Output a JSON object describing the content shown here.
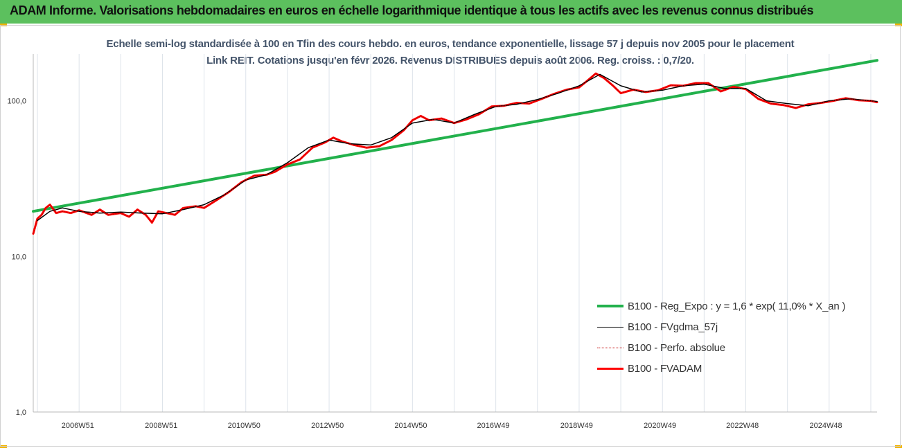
{
  "header": {
    "title": "ADAM Informe. Valorisations hebdomadaires en euros en échelle logarithmique identique à tous les actifs avec les revenus connus distribués"
  },
  "chart_data": {
    "type": "line",
    "title": "Echelle semi-log standardisée à 100 en Tfin des cours hebdo. en euros, tendance exponentielle, lissage 57 j depuis nov 2005 pour le placement Link REIT. Cotations jusqu'en févr 2026. Revenus DISTRIBUES depuis août 2006. Reg. croiss. : 0,7/20.",
    "xlabel": "",
    "ylabel": "",
    "y_scale": "log",
    "ylim": [
      1,
      200
    ],
    "xlim": [
      2005.9,
      2026.15
    ],
    "y_ticks": [
      {
        "value": 1,
        "label": "1,0"
      },
      {
        "value": 10,
        "label": "10,0"
      },
      {
        "value": 100,
        "label": "100,0"
      }
    ],
    "x_ticks": [
      {
        "value": 2006.97,
        "label": "2006W51"
      },
      {
        "value": 2008.97,
        "label": "2008W51"
      },
      {
        "value": 2010.96,
        "label": "2010W50"
      },
      {
        "value": 2012.96,
        "label": "2012W50"
      },
      {
        "value": 2014.96,
        "label": "2014W50"
      },
      {
        "value": 2016.94,
        "label": "2016W49"
      },
      {
        "value": 2018.94,
        "label": "2018W49"
      },
      {
        "value": 2020.94,
        "label": "2020W49"
      },
      {
        "value": 2022.92,
        "label": "2022W48"
      },
      {
        "value": 2024.92,
        "label": "2024W48"
      }
    ],
    "grid": {
      "vertical": true,
      "horizontal": false
    },
    "legend_position": "bottom-right",
    "series": [
      {
        "name": "B100 - Reg_Expo : y = 1,6 * exp( 11,0% *  X_an )",
        "color": "#22b14c",
        "style": "solid",
        "width": 4,
        "x": [
          2005.9,
          2026.15
        ],
        "y": [
          19.5,
          182
        ]
      },
      {
        "name": "B100 - FVgdma_57j",
        "color": "#000000",
        "style": "solid",
        "width": 1.5,
        "x": [
          2006.0,
          2006.3,
          2006.6,
          2007.0,
          2007.5,
          2008.0,
          2008.5,
          2009.0,
          2009.5,
          2010.0,
          2010.5,
          2011.0,
          2011.5,
          2012.0,
          2012.5,
          2013.0,
          2013.5,
          2014.0,
          2014.5,
          2015.0,
          2015.5,
          2016.0,
          2016.5,
          2017.0,
          2017.5,
          2018.0,
          2018.5,
          2019.0,
          2019.5,
          2020.0,
          2020.5,
          2021.0,
          2021.5,
          2022.0,
          2022.5,
          2023.0,
          2023.5,
          2024.0,
          2024.5,
          2025.0,
          2025.5,
          2026.0,
          2026.15
        ],
        "y": [
          17.0,
          19.5,
          20.5,
          19.5,
          19.0,
          19.3,
          19.0,
          18.8,
          20.0,
          21.5,
          25.0,
          31.0,
          33.5,
          40.0,
          50.0,
          56.0,
          53.0,
          52.0,
          58.0,
          72.0,
          76.0,
          72.0,
          82.0,
          92.0,
          95.0,
          102.0,
          112.0,
          125.0,
          148.0,
          125.0,
          114.0,
          117.0,
          125.0,
          128.0,
          120.0,
          120.0,
          100.0,
          96.0,
          93.0,
          100.0,
          103.0,
          100.0,
          99.0
        ]
      },
      {
        "name": "B100 - Perfo. absolue",
        "color": "#c00000",
        "style": "dotted",
        "width": 1,
        "x": [
          2005.9,
          2006.0,
          2006.1,
          2006.2,
          2006.3,
          2006.45,
          2006.6,
          2006.8,
          2007.0,
          2007.3,
          2007.5,
          2007.7,
          2008.0,
          2008.2,
          2008.4,
          2008.6,
          2008.75,
          2008.9,
          2009.1,
          2009.3,
          2009.5,
          2009.8,
          2010.0,
          2010.3,
          2010.6,
          2010.9,
          2011.2,
          2011.5,
          2011.7,
          2012.0,
          2012.3,
          2012.6,
          2012.9,
          2013.1,
          2013.3,
          2013.6,
          2013.9,
          2014.2,
          2014.5,
          2014.8,
          2015.0,
          2015.2,
          2015.4,
          2015.7,
          2016.0,
          2016.3,
          2016.6,
          2016.9,
          2017.2,
          2017.5,
          2017.8,
          2018.1,
          2018.4,
          2018.7,
          2019.0,
          2019.2,
          2019.4,
          2019.6,
          2019.8,
          2020.0,
          2020.3,
          2020.6,
          2020.9,
          2021.2,
          2021.5,
          2021.8,
          2022.1,
          2022.4,
          2022.7,
          2023.0,
          2023.3,
          2023.6,
          2023.9,
          2024.2,
          2024.5,
          2024.8,
          2025.1,
          2025.4,
          2025.7,
          2026.0,
          2026.15
        ],
        "y": [
          14.0,
          17.5,
          18.5,
          20.5,
          21.5,
          19.0,
          19.5,
          19.0,
          19.8,
          18.5,
          20.0,
          18.5,
          19.0,
          18.0,
          20.0,
          18.5,
          16.5,
          19.5,
          19.0,
          18.5,
          20.5,
          21.0,
          20.5,
          23.0,
          26.0,
          30.0,
          33.0,
          33.5,
          35.0,
          39.0,
          42.0,
          50.0,
          54.0,
          58.0,
          55.0,
          52.0,
          50.0,
          51.0,
          56.0,
          65.0,
          75.0,
          80.0,
          75.0,
          77.0,
          72.0,
          76.0,
          82.0,
          92.0,
          93.0,
          97.0,
          96.0,
          103.0,
          111.0,
          118.0,
          122.0,
          135.0,
          150.0,
          140.0,
          126.0,
          112.0,
          118.0,
          114.0,
          117.0,
          126.0,
          125.0,
          130.0,
          130.0,
          115.0,
          123.0,
          119.0,
          103.0,
          96.0,
          94.0,
          90.0,
          95.0,
          97.0,
          100.0,
          104.0,
          101.0,
          100.0,
          98.0
        ]
      },
      {
        "name": "B100 - FVADAM",
        "color": "#ff0000",
        "style": "solid",
        "width": 3,
        "x": [
          2005.9,
          2006.0,
          2006.1,
          2006.2,
          2006.3,
          2006.45,
          2006.6,
          2006.8,
          2007.0,
          2007.3,
          2007.5,
          2007.7,
          2008.0,
          2008.2,
          2008.4,
          2008.6,
          2008.75,
          2008.9,
          2009.1,
          2009.3,
          2009.5,
          2009.8,
          2010.0,
          2010.3,
          2010.6,
          2010.9,
          2011.2,
          2011.5,
          2011.7,
          2012.0,
          2012.3,
          2012.6,
          2012.9,
          2013.1,
          2013.3,
          2013.6,
          2013.9,
          2014.2,
          2014.5,
          2014.8,
          2015.0,
          2015.2,
          2015.4,
          2015.7,
          2016.0,
          2016.3,
          2016.6,
          2016.9,
          2017.2,
          2017.5,
          2017.8,
          2018.1,
          2018.4,
          2018.7,
          2019.0,
          2019.2,
          2019.4,
          2019.6,
          2019.8,
          2020.0,
          2020.3,
          2020.6,
          2020.9,
          2021.2,
          2021.5,
          2021.8,
          2022.1,
          2022.4,
          2022.7,
          2023.0,
          2023.3,
          2023.6,
          2023.9,
          2024.2,
          2024.5,
          2024.8,
          2025.1,
          2025.4,
          2025.7,
          2026.0,
          2026.15
        ],
        "y": [
          14.0,
          17.5,
          18.5,
          20.5,
          21.5,
          19.0,
          19.5,
          19.0,
          19.8,
          18.5,
          20.0,
          18.5,
          19.0,
          18.0,
          20.0,
          18.5,
          16.5,
          19.5,
          19.0,
          18.5,
          20.5,
          21.0,
          20.5,
          23.0,
          26.0,
          30.0,
          33.0,
          33.5,
          35.0,
          39.0,
          42.0,
          50.0,
          54.0,
          58.0,
          55.0,
          52.0,
          50.0,
          51.0,
          56.0,
          65.0,
          75.0,
          80.0,
          75.0,
          77.0,
          72.0,
          76.0,
          82.0,
          92.0,
          93.0,
          97.0,
          96.0,
          103.0,
          111.0,
          118.0,
          122.0,
          135.0,
          150.0,
          140.0,
          126.0,
          112.0,
          118.0,
          114.0,
          117.0,
          126.0,
          125.0,
          130.0,
          130.0,
          115.0,
          123.0,
          119.0,
          103.0,
          96.0,
          94.0,
          90.0,
          95.0,
          97.0,
          100.0,
          104.0,
          101.0,
          100.0,
          98.0
        ]
      }
    ]
  }
}
